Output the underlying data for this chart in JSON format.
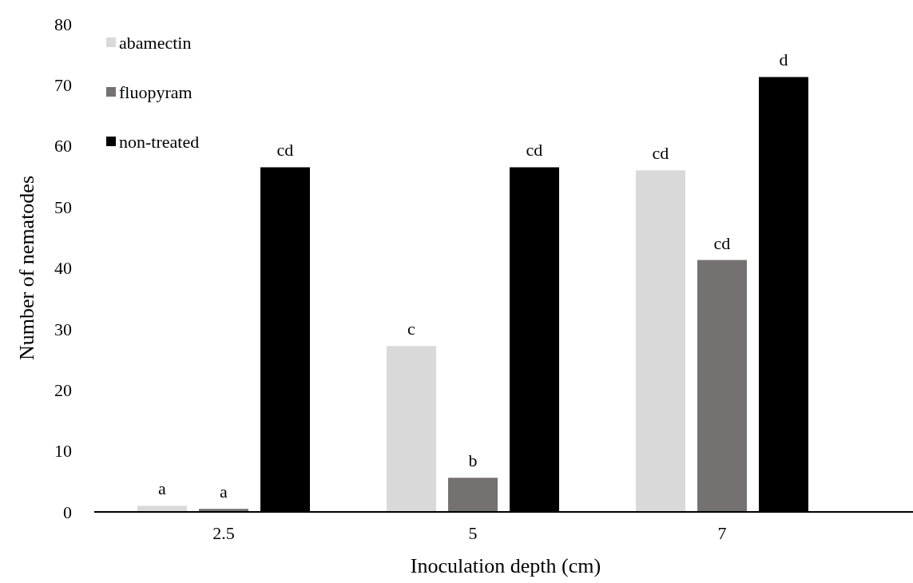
{
  "chart_data": {
    "type": "bar",
    "xlabel": "Inoculation depth (cm)",
    "ylabel": "Number of nematodes",
    "categories": [
      "2.5",
      "5",
      "7"
    ],
    "series": [
      {
        "name": "abamectin",
        "color": "#d9d9d9",
        "values": [
          1,
          27.2,
          56
        ],
        "value_labels": [
          "a",
          "c",
          "cd"
        ]
      },
      {
        "name": "fluopyram",
        "color": "#767171",
        "values": [
          0.5,
          5.6,
          41.3
        ],
        "value_labels": [
          "a",
          "b",
          "cd"
        ]
      },
      {
        "name": "non-treated",
        "color": "#000000",
        "values": [
          56.5,
          56.5,
          71.3
        ],
        "value_labels": [
          "cd",
          "cd",
          "d"
        ]
      }
    ],
    "ylim": [
      0,
      80
    ],
    "yticks": [
      0,
      10,
      20,
      30,
      40,
      50,
      60,
      70,
      80
    ],
    "legend": "top left"
  }
}
